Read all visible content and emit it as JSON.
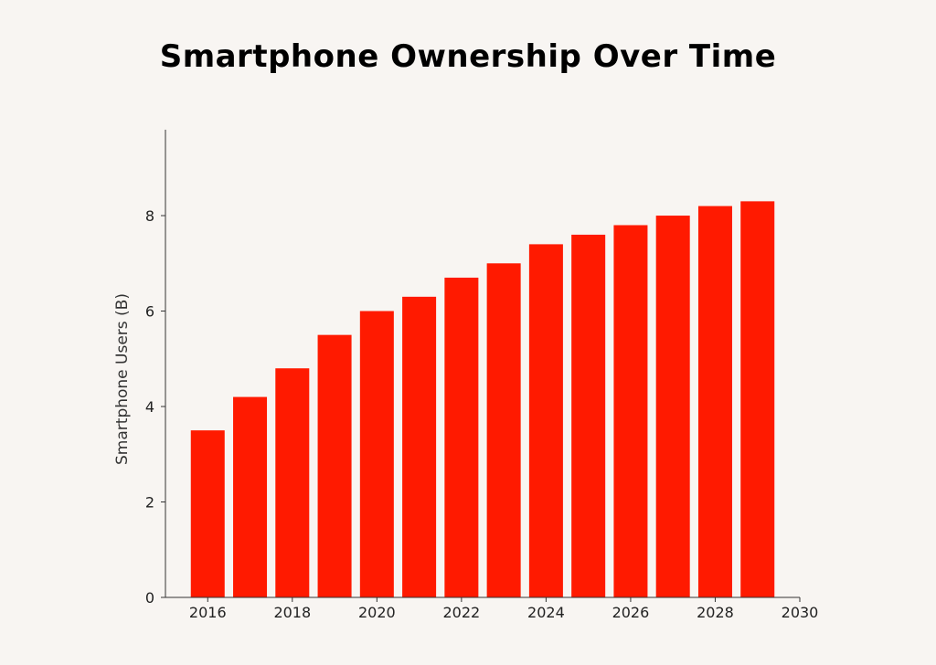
{
  "chart_data": {
    "type": "bar",
    "title": "Smartphone Ownership Over Time",
    "xlabel": "",
    "ylabel": "Smartphone Users (B)",
    "x": [
      2016,
      2017,
      2018,
      2019,
      2020,
      2021,
      2022,
      2023,
      2024,
      2025,
      2026,
      2027,
      2028,
      2029
    ],
    "values": [
      3.5,
      4.2,
      4.8,
      5.5,
      6.0,
      6.3,
      6.7,
      7.0,
      7.4,
      7.6,
      7.8,
      8.0,
      8.2,
      8.3
    ],
    "xlim": [
      2015,
      2030
    ],
    "ylim": [
      0,
      9.8
    ],
    "xticks": [
      2016,
      2018,
      2020,
      2022,
      2024,
      2026,
      2028,
      2030
    ],
    "xtick_labels": [
      "2016",
      "2018",
      "2020",
      "2022",
      "2024",
      "2026",
      "2028",
      "2030"
    ],
    "yticks": [
      0,
      2,
      4,
      6,
      8
    ],
    "ytick_labels": [
      "0",
      "2",
      "4",
      "6",
      "8"
    ],
    "grid": false,
    "legend": "none",
    "colors": {
      "bar": "#ff1a00",
      "background": "#f8f5f2",
      "axis": "#333333",
      "title": "#000000"
    }
  }
}
